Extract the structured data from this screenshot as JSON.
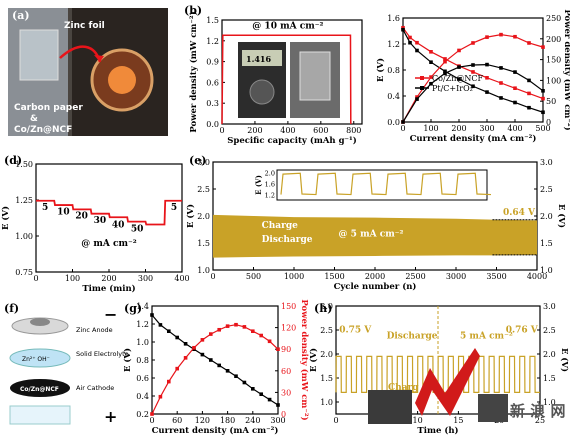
{
  "panels": {
    "a": {
      "label": "(a)",
      "texts": [
        "Zinc foil",
        "Carbon paper",
        "&",
        "Co/Zn@NCF"
      ]
    },
    "b": {
      "label": "(b)",
      "meter_reading": "1.416"
    },
    "f": {
      "label": "(f)",
      "layers": [
        "Zinc Anode",
        "Solid Electrolyte",
        "Air Cathode"
      ],
      "ions": "Zn²⁺  OH⁻",
      "cathode_label": "Co/Zn@NCF",
      "minus": "−",
      "plus": "+"
    },
    "h_overlay": {
      "watermark": "新 浪 网",
      "partial_text": "Charg"
    }
  },
  "chart_data": [
    {
      "id": "b",
      "type": "line",
      "xlabel": "Specific capacity (mAh g⁻¹)",
      "ylabel": "Power density (mW cm⁻²)",
      "xlim": [
        0,
        850
      ],
      "ylim": [
        0,
        1.5
      ],
      "xticks": [
        0,
        200,
        400,
        600,
        800
      ],
      "yticks": [
        0.0,
        0.3,
        0.6,
        0.9,
        1.2,
        1.5
      ],
      "annotation": "@ 10 mA cm⁻²",
      "series": [
        {
          "color": "#e8141a",
          "x": [
            0,
            5,
            780,
            782
          ],
          "y": [
            0,
            1.28,
            1.28,
            0
          ]
        }
      ]
    },
    {
      "id": "c",
      "type": "line",
      "xlabel": "Current density (mA cm⁻²)",
      "ylabel": "E (V)",
      "ylabel_right": "Power density (mW cm⁻²)",
      "xlim": [
        0,
        500
      ],
      "ylim": [
        0,
        1.6
      ],
      "ylim_right": [
        0,
        250
      ],
      "xticks": [
        0,
        100,
        200,
        300,
        400,
        500
      ],
      "yticks": [
        0.0,
        0.4,
        0.8,
        1.2,
        1.6
      ],
      "yticks_right": [
        0,
        50,
        100,
        150,
        200,
        250
      ],
      "legend": "center-left",
      "series": [
        {
          "name": "Co/Zn@NCF",
          "color": "#e8141a",
          "axis": "left",
          "marker": "square",
          "x": [
            0,
            25,
            50,
            100,
            150,
            200,
            250,
            300,
            350,
            400,
            450,
            500
          ],
          "y": [
            1.45,
            1.3,
            1.22,
            1.08,
            0.97,
            0.86,
            0.77,
            0.68,
            0.6,
            0.52,
            0.44,
            0.36
          ]
        },
        {
          "name": "Pt/C+IrO₂",
          "color": "#000000",
          "axis": "left",
          "marker": "square",
          "x": [
            0,
            25,
            50,
            100,
            150,
            200,
            250,
            300,
            350,
            400,
            450,
            500
          ],
          "y": [
            1.42,
            1.22,
            1.1,
            0.92,
            0.78,
            0.66,
            0.55,
            0.46,
            0.37,
            0.3,
            0.22,
            0.15
          ]
        },
        {
          "name": "",
          "color": "#e8141a",
          "axis": "right",
          "marker": "square",
          "x": [
            0,
            50,
            100,
            150,
            200,
            250,
            300,
            350,
            400,
            450,
            500
          ],
          "y": [
            0,
            60,
            108,
            145,
            172,
            190,
            204,
            210,
            205,
            190,
            180
          ]
        },
        {
          "name": "",
          "color": "#000000",
          "axis": "right",
          "marker": "square",
          "x": [
            0,
            50,
            100,
            150,
            200,
            250,
            300,
            350,
            400,
            450,
            500
          ],
          "y": [
            0,
            55,
            92,
            117,
            132,
            137,
            138,
            130,
            120,
            100,
            75
          ]
        }
      ]
    },
    {
      "id": "d",
      "type": "line",
      "xlabel": "Time (min)",
      "ylabel": "E (V)",
      "xlim": [
        0,
        400
      ],
      "ylim": [
        0.75,
        1.5
      ],
      "xticks": [
        0,
        100,
        200,
        300,
        400
      ],
      "yticks": [
        0.75,
        1.0,
        1.25,
        1.5
      ],
      "annotation": "@ mA cm⁻²",
      "step_labels": [
        "5",
        "10",
        "20",
        "30",
        "40",
        "50",
        "5"
      ],
      "series": [
        {
          "color": "#e8141a",
          "x": [
            0,
            50,
            52,
            100,
            102,
            150,
            152,
            200,
            202,
            250,
            252,
            300,
            302,
            352,
            354,
            400
          ],
          "y": [
            1.245,
            1.245,
            1.215,
            1.215,
            1.185,
            1.185,
            1.155,
            1.155,
            1.13,
            1.13,
            1.1,
            1.1,
            1.08,
            1.08,
            1.245,
            1.245
          ]
        }
      ]
    },
    {
      "id": "e",
      "type": "area",
      "xlabel": "Cycle number (n)",
      "ylabel": "E (V)",
      "ylabel_right": "E (V)",
      "xlim": [
        0,
        4000
      ],
      "ylim": [
        1.0,
        3.0
      ],
      "xticks": [
        0,
        500,
        1000,
        1500,
        2000,
        2500,
        3000,
        3500,
        4000
      ],
      "yticks": [
        1.0,
        1.5,
        2.0,
        2.5,
        3.0
      ],
      "yticks_right": [
        1.0,
        1.5,
        2.0,
        2.5,
        3.0
      ],
      "band_color": "#c9a227",
      "charge_label": "Charge",
      "discharge_label": "Discharge",
      "annotation": "@ 5 mA cm⁻²",
      "gap_label": "0.64 V",
      "band": {
        "x": [
          0,
          500,
          1000,
          2000,
          3000,
          3500,
          4000
        ],
        "upper": [
          2.02,
          2.0,
          1.98,
          1.97,
          1.95,
          1.93,
          1.92
        ],
        "lower": [
          1.23,
          1.24,
          1.25,
          1.26,
          1.27,
          1.27,
          1.28
        ]
      },
      "inset": {
        "ylabel": "E (V)",
        "yticks": [
          1.2,
          1.6,
          2.0
        ],
        "ylim": [
          1.0,
          2.1
        ],
        "cycles": 6
      }
    },
    {
      "id": "g",
      "type": "line",
      "xlabel": "Current density (mA cm⁻²)",
      "ylabel": "E (V)",
      "ylabel_right": "Power density (mW cm⁻²)",
      "xlim": [
        0,
        300
      ],
      "ylim": [
        0.2,
        1.4
      ],
      "ylim_right": [
        0,
        150
      ],
      "xticks": [
        0,
        60,
        120,
        180,
        240,
        300
      ],
      "yticks": [
        0.2,
        0.4,
        0.6,
        0.8,
        1.0,
        1.2,
        1.4
      ],
      "yticks_right": [
        0,
        30,
        60,
        90,
        120,
        150
      ],
      "series": [
        {
          "name": "",
          "color": "#000000",
          "axis": "left",
          "marker": "square",
          "x": [
            0,
            20,
            40,
            60,
            80,
            100,
            120,
            140,
            160,
            180,
            200,
            220,
            240,
            260,
            280,
            300
          ],
          "y": [
            1.3,
            1.19,
            1.12,
            1.05,
            0.98,
            0.92,
            0.86,
            0.8,
            0.74,
            0.68,
            0.62,
            0.55,
            0.48,
            0.42,
            0.36,
            0.3
          ]
        },
        {
          "name": "",
          "color": "#e8141a",
          "axis": "right",
          "marker": "square",
          "x": [
            0,
            20,
            40,
            60,
            80,
            100,
            120,
            140,
            160,
            180,
            200,
            220,
            240,
            260,
            280,
            300
          ],
          "y": [
            0,
            24,
            45,
            63,
            78,
            92,
            103,
            111,
            117,
            122,
            124,
            121,
            115,
            109,
            101,
            90
          ]
        }
      ]
    },
    {
      "id": "h",
      "type": "line",
      "xlabel": "Time (h)",
      "ylabel": "E (V)",
      "ylabel_right": "E (V)",
      "xlim": [
        0,
        25
      ],
      "ylim": [
        0.75,
        3.0
      ],
      "xticks": [
        0,
        5,
        10,
        15,
        20,
        25
      ],
      "yticks": [
        1.0,
        1.5,
        2.0,
        2.5,
        3.0
      ],
      "yticks_right": [
        1.0,
        1.5,
        2.0,
        2.5,
        3.0
      ],
      "annotation_left": "0.75 V",
      "annotation_right": "0.76 V",
      "discharge_label": "Discharge",
      "current_label": "5 mA cm⁻²",
      "upper": 1.95,
      "lower": 1.2,
      "cycles": 20,
      "series": [
        {
          "color": "#c9a227"
        }
      ]
    }
  ]
}
